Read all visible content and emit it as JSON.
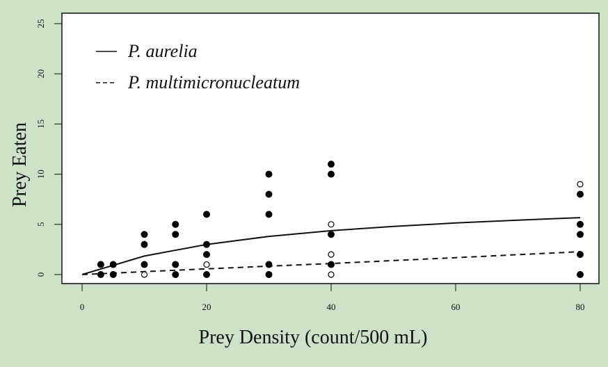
{
  "chart_data": {
    "type": "scatter",
    "title": "",
    "xlabel": "Prey Density (count/500 mL)",
    "ylabel": "Prey Eaten",
    "xlim": [
      0,
      80
    ],
    "ylim": [
      0,
      25
    ],
    "x_ticks": [
      0,
      20,
      40,
      60,
      80
    ],
    "y_ticks": [
      0,
      5,
      10,
      15,
      20,
      25
    ],
    "grid": false,
    "legend": {
      "placement": "top-left",
      "entries": [
        {
          "label": "P. aurelia",
          "line_style": "solid"
        },
        {
          "label": "P. multimicronucleatum",
          "line_style": "dashed"
        }
      ]
    },
    "series": [
      {
        "name": "P. aurelia",
        "marker": "filled-circle",
        "points": [
          [
            3,
            1
          ],
          [
            3,
            0
          ],
          [
            5,
            1
          ],
          [
            5,
            0
          ],
          [
            10,
            4
          ],
          [
            10,
            3
          ],
          [
            10,
            1
          ],
          [
            15,
            5
          ],
          [
            15,
            4
          ],
          [
            15,
            1
          ],
          [
            15,
            0
          ],
          [
            20,
            6
          ],
          [
            20,
            3
          ],
          [
            20,
            2
          ],
          [
            20,
            0
          ],
          [
            30,
            10
          ],
          [
            30,
            8
          ],
          [
            30,
            6
          ],
          [
            30,
            1
          ],
          [
            30,
            0
          ],
          [
            40,
            11
          ],
          [
            40,
            10
          ],
          [
            40,
            4
          ],
          [
            40,
            1
          ],
          [
            80,
            8
          ],
          [
            80,
            5
          ],
          [
            80,
            4
          ],
          [
            80,
            2
          ],
          [
            80,
            0
          ]
        ],
        "fit_curve": {
          "x": [
            0,
            10,
            20,
            30,
            40,
            50,
            60,
            70,
            80
          ],
          "y": [
            0,
            1.84,
            3.0,
            3.8,
            4.37,
            4.8,
            5.14,
            5.42,
            5.67
          ]
        }
      },
      {
        "name": "P. multimicronucleatum",
        "marker": "open-circle",
        "points": [
          [
            10,
            0
          ],
          [
            20,
            1
          ],
          [
            40,
            5
          ],
          [
            40,
            2
          ],
          [
            40,
            0
          ],
          [
            80,
            9
          ]
        ],
        "fit_curve": {
          "x": [
            0,
            10,
            20,
            30,
            40,
            50,
            60,
            70,
            80
          ],
          "y": [
            0,
            0.29,
            0.57,
            0.84,
            1.1,
            1.39,
            1.68,
            1.98,
            2.28
          ]
        }
      }
    ]
  }
}
